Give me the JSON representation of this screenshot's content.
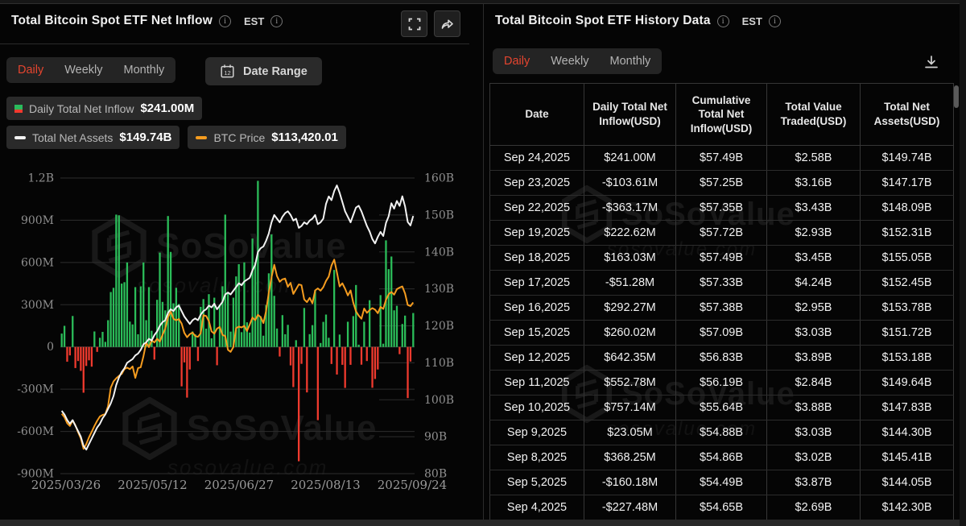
{
  "colors": {
    "accent_red": "#e5452f",
    "bar_green": "#2bbd59",
    "bar_red": "#ef3a2e",
    "assets_line": "#f2f2f2",
    "btc_line": "#f59c1f",
    "grid": "#2d2d2d",
    "zero_line": "#3d3d3d",
    "axis_text": "#8f8f8f"
  },
  "watermark": {
    "brand": "SoSoValue",
    "domain": "sosovalue.com"
  },
  "left_panel": {
    "title": "Total Bitcoin Spot ETF Net Inflow",
    "est_label": "EST",
    "tabs": {
      "0": "Daily",
      "1": "Weekly",
      "2": "Monthly"
    },
    "active_tab": "Daily",
    "date_range_label": "Date Range",
    "calendar_day": "12",
    "legend": {
      "inflow_label": "Daily Total Net Inflow",
      "inflow_value": "$241.00M",
      "assets_label": "Total Net Assets",
      "assets_value": "$149.74B",
      "btc_label": "BTC Price",
      "btc_value": "$113,420.01"
    }
  },
  "right_panel": {
    "title": "Total Bitcoin Spot ETF History Data",
    "est_label": "EST",
    "tabs": {
      "0": "Daily",
      "1": "Weekly",
      "2": "Monthly"
    },
    "active_tab": "Daily"
  },
  "table": {
    "headers": {
      "date": "Date",
      "daily": "Daily Total Net Inflow(USD)",
      "cumulative": "Cumulative Total Net Inflow(USD)",
      "traded": "Total Value Traded(USD)",
      "assets": "Total Net Assets(USD)"
    },
    "rows": [
      {
        "date": "Sep 24,2025",
        "inflow": "$241.00M",
        "cumulative": "$57.49B",
        "traded": "$2.58B",
        "assets": "$149.74B"
      },
      {
        "date": "Sep 23,2025",
        "inflow": "-$103.61M",
        "cumulative": "$57.25B",
        "traded": "$3.16B",
        "assets": "$147.17B"
      },
      {
        "date": "Sep 22,2025",
        "inflow": "-$363.17M",
        "cumulative": "$57.35B",
        "traded": "$3.43B",
        "assets": "$148.09B"
      },
      {
        "date": "Sep 19,2025",
        "inflow": "$222.62M",
        "cumulative": "$57.72B",
        "traded": "$2.93B",
        "assets": "$152.31B"
      },
      {
        "date": "Sep 18,2025",
        "inflow": "$163.03M",
        "cumulative": "$57.49B",
        "traded": "$3.45B",
        "assets": "$155.05B"
      },
      {
        "date": "Sep 17,2025",
        "inflow": "-$51.28M",
        "cumulative": "$57.33B",
        "traded": "$4.24B",
        "assets": "$152.45B"
      },
      {
        "date": "Sep 16,2025",
        "inflow": "$292.27M",
        "cumulative": "$57.38B",
        "traded": "$2.95B",
        "assets": "$153.78B"
      },
      {
        "date": "Sep 15,2025",
        "inflow": "$260.02M",
        "cumulative": "$57.09B",
        "traded": "$3.03B",
        "assets": "$151.72B"
      },
      {
        "date": "Sep 12,2025",
        "inflow": "$642.35M",
        "cumulative": "$56.83B",
        "traded": "$3.89B",
        "assets": "$153.18B"
      },
      {
        "date": "Sep 11,2025",
        "inflow": "$552.78M",
        "cumulative": "$56.19B",
        "traded": "$2.84B",
        "assets": "$149.64B"
      },
      {
        "date": "Sep 10,2025",
        "inflow": "$757.14M",
        "cumulative": "$55.64B",
        "traded": "$3.88B",
        "assets": "$147.83B"
      },
      {
        "date": "Sep 9,2025",
        "inflow": "$23.05M",
        "cumulative": "$54.88B",
        "traded": "$3.03B",
        "assets": "$144.30B"
      },
      {
        "date": "Sep 8,2025",
        "inflow": "$368.25M",
        "cumulative": "$54.86B",
        "traded": "$3.02B",
        "assets": "$145.41B"
      },
      {
        "date": "Sep 5,2025",
        "inflow": "-$160.18M",
        "cumulative": "$54.49B",
        "traded": "$3.87B",
        "assets": "$144.05B"
      },
      {
        "date": "Sep 4,2025",
        "inflow": "-$227.48M",
        "cumulative": "$54.65B",
        "traded": "$2.69B",
        "assets": "$142.30B"
      }
    ]
  },
  "chart_data": {
    "type": "bar+line combo",
    "title": "Total Bitcoin Spot ETF Net Inflow (Daily)",
    "x_range": [
      "2025/03/26",
      "2025/09/24"
    ],
    "x_tick_labels": [
      "2025/03/26",
      "2025/05/12",
      "2025/06/27",
      "2025/08/13",
      "2025/09/24"
    ],
    "left_axis": {
      "label": "Daily Total Net Inflow",
      "unit": "USD M",
      "min": -900,
      "max": 1200,
      "ticks": [
        [
          1200,
          "1.2B"
        ],
        [
          900,
          "900M"
        ],
        [
          600,
          "600M"
        ],
        [
          300,
          "300M"
        ],
        [
          0,
          "0"
        ],
        [
          -300,
          "-300M"
        ],
        [
          -600,
          "-600M"
        ],
        [
          -900,
          "-900M"
        ]
      ]
    },
    "right_axis": {
      "label": "Total Net Assets",
      "unit": "USD B",
      "min": 80,
      "max": 160,
      "ticks": [
        [
          160,
          "160B"
        ],
        [
          150,
          "150B"
        ],
        [
          140,
          "140B"
        ],
        [
          130,
          "130B"
        ],
        [
          120,
          "120B"
        ],
        [
          110,
          "110B"
        ],
        [
          100,
          "100B"
        ],
        [
          90,
          "90B"
        ],
        [
          80,
          "80B"
        ]
      ]
    },
    "grid": true,
    "legend_position": "top-left",
    "current": {
      "daily_net_inflow": "$241.00M",
      "total_net_assets": "$149.74B",
      "btc_price": "$113,420.01"
    },
    "series": [
      {
        "name": "Daily Total Net Inflow",
        "type": "bar",
        "unit": "USD M",
        "axis": "left",
        "values": [
          95,
          150,
          -105,
          -60,
          220,
          -150,
          -100,
          -170,
          -325,
          -135,
          -95,
          -140,
          110,
          -35,
          65,
          107,
          36,
          190,
          390,
          420,
          940,
          935,
          450,
          460,
          600,
          180,
          160,
          425,
          90,
          430,
          600,
          190,
          425,
          115,
          -90,
          335,
          670,
          320,
          260,
          930,
          675,
          310,
          420,
          305,
          -280,
          -110,
          -360,
          -160,
          110,
          90,
          -100,
          285,
          340,
          130,
          375,
          61,
          350,
          -130,
          301,
          431,
          940,
          389,
          109,
          350,
          501,
          588,
          105,
          601,
          175,
          102,
          770,
          602,
          1180,
          218,
          80,
          297,
          523,
          799,
          363,
          131,
          -68,
          226,
          90,
          157,
          -131,
          -285,
          48,
          -812,
          -120,
          277,
          -323,
          91,
          155,
          404,
          -520,
          28,
          178,
          230,
          65,
          -121,
          547,
          -196,
          88,
          -127,
          -291,
          179,
          -127,
          219,
          440,
          16,
          -126,
          179,
          -100,
          332,
          -290,
          -227.48,
          -160.18,
          368.25,
          23.05,
          757.14,
          552.78,
          642.35,
          260.02,
          292.27,
          -51.28,
          163.03,
          222.62,
          -363.17,
          -103.61,
          241.0
        ]
      },
      {
        "name": "Total Net Assets",
        "type": "line",
        "unit": "USD B",
        "axis": "right",
        "values": [
          97,
          96,
          94.5,
          93.5,
          94.5,
          93,
          91.5,
          90,
          87.5,
          86.5,
          88,
          89.5,
          91,
          92.5,
          93.5,
          95,
          96,
          97.5,
          99,
          101,
          104,
          106,
          107.5,
          108.5,
          110,
          110.5,
          111,
          112,
          112.5,
          113.5,
          115,
          115.5,
          116.5,
          116,
          117.5,
          118.5,
          120,
          121,
          121.5,
          123.5,
          124.5,
          124,
          125,
          125.5,
          124,
          122.5,
          121.5,
          120.5,
          121.5,
          122,
          121.5,
          123,
          124,
          124.5,
          125.5,
          125,
          126,
          124.5,
          125.5,
          126.5,
          128.5,
          129,
          128.5,
          129.5,
          130.5,
          131.5,
          131,
          132,
          132.5,
          133,
          135,
          136.5,
          140,
          141,
          141.5,
          143,
          145,
          148,
          150,
          149,
          148,
          149.5,
          150.5,
          151,
          150,
          148.5,
          149,
          146.5,
          147,
          148,
          147.5,
          148.5,
          149,
          150,
          147.5,
          148,
          149,
          153,
          155,
          154,
          156.5,
          158,
          156,
          153.5,
          151,
          149.5,
          148,
          150,
          152,
          152.5,
          151,
          149,
          147,
          145.5,
          143.5,
          142.3,
          144.05,
          145.41,
          144.3,
          147.83,
          149.64,
          153.18,
          151.72,
          153.78,
          152.45,
          155.05,
          152.31,
          148.09,
          147.17,
          149.74
        ]
      },
      {
        "name": "BTC Price",
        "type": "line",
        "unit": "USD thousands",
        "axis": "hidden",
        "scale_range": [
          70,
          145
        ],
        "values": [
          85.2,
          84.3,
          82.8,
          82.1,
          83.5,
          82.3,
          80.5,
          78.9,
          76.3,
          77.5,
          79.2,
          80.6,
          82.1,
          83.4,
          84.5,
          84.9,
          85.1,
          87.1,
          91.8,
          93.4,
          94.2,
          94.8,
          95.3,
          96.5,
          96.9,
          96.5,
          97.2,
          94.3,
          96.8,
          97,
          99.8,
          103.2,
          102.1,
          103.8,
          103.3,
          104.2,
          103.5,
          105.2,
          106.8,
          109.7,
          111.1,
          109.3,
          108.9,
          109.2,
          108.1,
          105.7,
          104.6,
          105.4,
          105.8,
          104.9,
          104.7,
          105.6,
          110.2,
          110,
          108.7,
          106.1,
          105.5,
          106.8,
          107.2,
          105.2,
          104.9,
          101.4,
          100.9,
          102.1,
          106.9,
          107.3,
          107.1,
          107.5,
          106.2,
          107.8,
          109.6,
          108.9,
          110.3,
          109.7,
          108.2,
          111.2,
          115.9,
          119.8,
          123,
          120.1,
          118.7,
          119.3,
          119.5,
          117.4,
          118.4,
          115.6,
          116.8,
          118,
          117.8,
          114.2,
          113.5,
          114.6,
          113.2,
          116.5,
          117,
          116.4,
          117.3,
          118.9,
          120,
          122.8,
          124.3,
          121.1,
          117.5,
          118.3,
          116.9,
          115.2,
          116.5,
          113.4,
          111.2,
          110.1,
          109.3,
          111.9,
          110.8,
          111.5,
          112,
          111.6,
          110.7,
          112.3,
          111.8,
          114.1,
          115.5,
          116.1,
          115.4,
          116.8,
          117.2,
          117.5,
          115.7,
          112.8,
          112.5,
          113.42
        ]
      }
    ]
  }
}
